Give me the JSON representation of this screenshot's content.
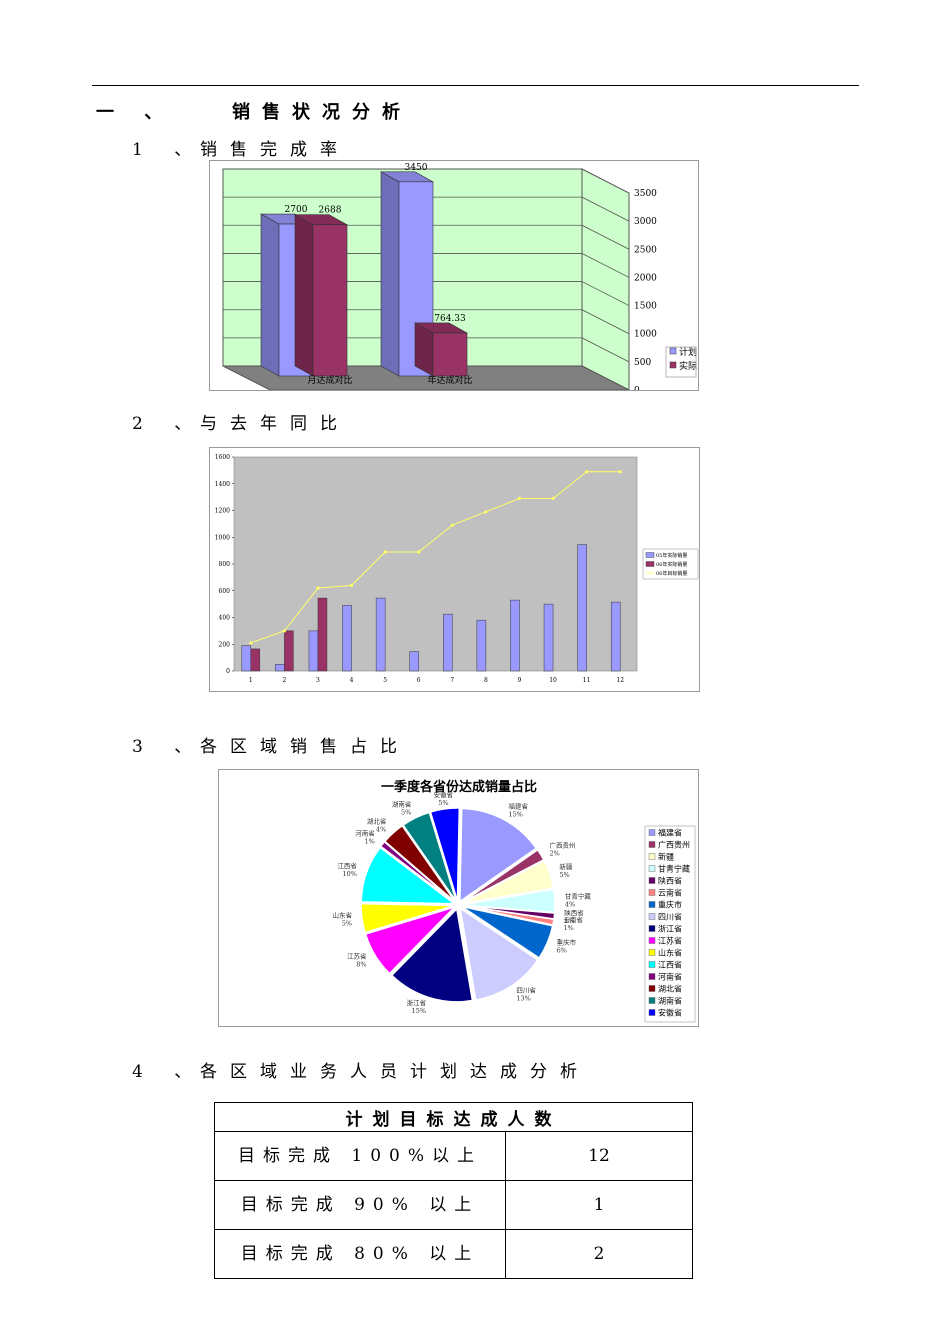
{
  "section1": {
    "num": "一 、",
    "title": "销售状况分析"
  },
  "subsections": [
    {
      "num": "1 、",
      "title": "销售完成率"
    },
    {
      "num": "2 、",
      "title": "与去年同比"
    },
    {
      "num": "3 、",
      "title": "各区域销售占比"
    },
    {
      "num": "4 、",
      "title": "各区域业务人员计划达成分析"
    }
  ],
  "chart_data": [
    {
      "type": "bar",
      "categories": [
        "月达成对比",
        "年达成对比"
      ],
      "series": [
        {
          "name": "计划",
          "values": [
            2700,
            3450
          ],
          "color": "#9999ff"
        },
        {
          "name": "实际",
          "values": [
            2688,
            764.33
          ],
          "color": "#993366"
        }
      ],
      "value_labels": [
        [
          "2700",
          "3450"
        ],
        [
          "2688",
          "764.33"
        ]
      ],
      "ylim": [
        0,
        3500
      ],
      "yticks": [
        "0",
        "500",
        "1000",
        "1500",
        "2000",
        "2500",
        "3000",
        "3500"
      ],
      "grid": true,
      "legend": "right",
      "background": "#ccffcc"
    },
    {
      "type": "bar",
      "categories": [
        "1",
        "2",
        "3",
        "4",
        "5",
        "6",
        "7",
        "8",
        "9",
        "10",
        "11",
        "12"
      ],
      "series": [
        {
          "name": "05年实际销量",
          "values": [
            190,
            50,
            300,
            490,
            545,
            145,
            425,
            380,
            530,
            500,
            945,
            515
          ],
          "color": "#9999ff"
        },
        {
          "name": "06年实际销量",
          "values": [
            165,
            300,
            545,
            null,
            null,
            null,
            null,
            null,
            null,
            null,
            null,
            null
          ],
          "color": "#993366"
        },
        {
          "name": "06年目标销量",
          "type": "line",
          "values": [
            210,
            300,
            620,
            640,
            890,
            890,
            1090,
            1190,
            1290,
            1290,
            1490,
            1490
          ],
          "color": "#ffff66"
        }
      ],
      "ylim": [
        0,
        1600
      ],
      "yticks": [
        "0",
        "200",
        "400",
        "600",
        "800",
        "1000",
        "1200",
        "1400",
        "1600"
      ],
      "legend": "right",
      "background": "#c0c0c0"
    },
    {
      "type": "pie",
      "title": "一季度各省份达成销量占比",
      "slices": [
        {
          "label": "福建省",
          "pct": "15%",
          "value": 15,
          "color": "#9999ff"
        },
        {
          "label": "广西贵州",
          "pct": "2%",
          "value": 2,
          "color": "#993366"
        },
        {
          "label": "新疆",
          "pct": "5%",
          "value": 5,
          "color": "#ffffcc"
        },
        {
          "label": "甘青宁藏",
          "pct": "4%",
          "value": 4,
          "color": "#ccffff"
        },
        {
          "label": "陕西省",
          "pct": "1%",
          "value": 1,
          "color": "#660066"
        },
        {
          "label": "云南省",
          "pct": "1%",
          "value": 1,
          "color": "#ff8080"
        },
        {
          "label": "重庆市",
          "pct": "6%",
          "value": 6,
          "color": "#0066cc"
        },
        {
          "label": "四川省",
          "pct": "13%",
          "value": 13,
          "color": "#ccccff"
        },
        {
          "label": "浙江省",
          "pct": "15%",
          "value": 15,
          "color": "#000080"
        },
        {
          "label": "江苏省",
          "pct": "8%",
          "value": 8,
          "color": "#ff00ff"
        },
        {
          "label": "山东省",
          "pct": "5%",
          "value": 5,
          "color": "#ffff00"
        },
        {
          "label": "江西省",
          "pct": "10%",
          "value": 10,
          "color": "#00ffff"
        },
        {
          "label": "河南省",
          "pct": "1%",
          "value": 1,
          "color": "#800080"
        },
        {
          "label": "湖北省",
          "pct": "4%",
          "value": 4,
          "color": "#800000"
        },
        {
          "label": "湖南省",
          "pct": "5%",
          "value": 5,
          "color": "#008080"
        },
        {
          "label": "安徽省",
          "pct": "5%",
          "value": 5,
          "color": "#0000ff"
        }
      ],
      "legend": "right"
    }
  ],
  "table": {
    "header": "计划目标达成人数",
    "rows": [
      {
        "label": "目标完成 100%以上",
        "value": "12"
      },
      {
        "label": "目标完成 90% 以上",
        "value": "1"
      },
      {
        "label": "目标完成 80% 以上",
        "value": "2"
      }
    ]
  }
}
